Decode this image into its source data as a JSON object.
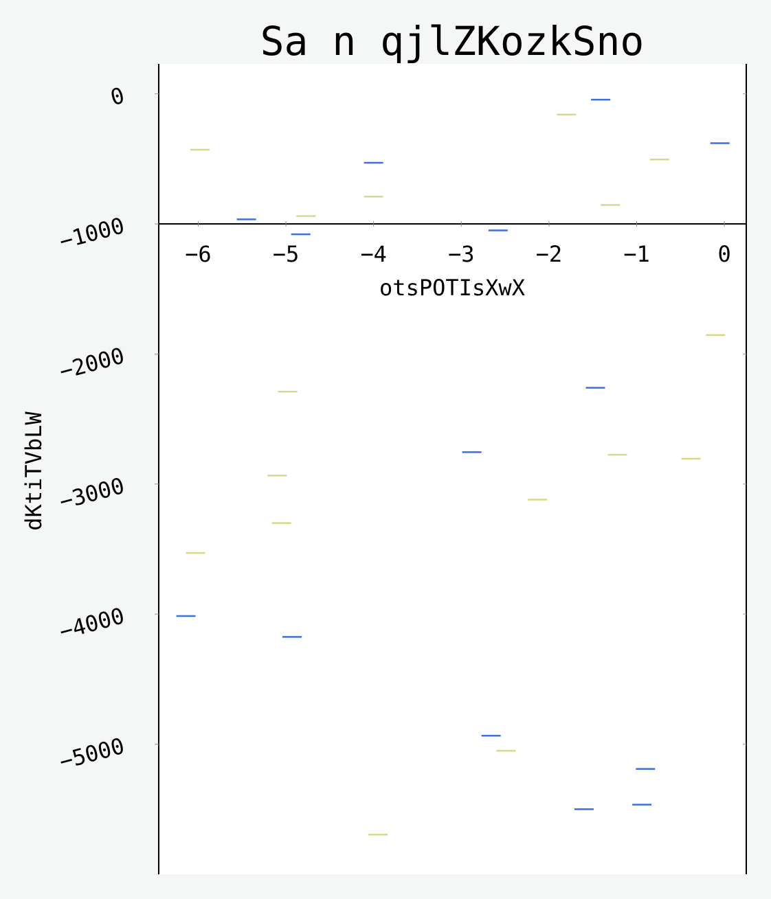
{
  "chart_data": {
    "type": "scatter",
    "title": "Sa n qjlZKozkSno",
    "xlabel": "otsPOTIsXwX",
    "ylabel": "dKtiTVbLW",
    "xlim": [
      -6.45,
      0.25
    ],
    "ylim": [
      -6000,
      230
    ],
    "xticks": [
      -6,
      -5,
      -4,
      -3,
      -2,
      -1,
      0
    ],
    "xtick_labels": [
      "−6",
      "−5",
      "−4",
      "−3",
      "−2",
      "−1",
      "0"
    ],
    "yticks": [
      0,
      -1000,
      -2000,
      -3000,
      -4000,
      -5000
    ],
    "ytick_labels": [
      "0",
      "−1000",
      "−2000",
      "−3000",
      "−4000",
      "−5000"
    ],
    "x_axis_at_y": -1000,
    "marker": "hline",
    "grid": false,
    "series": [
      {
        "color": "#3c6fe0",
        "points": [
          {
            "x": -1.41,
            "y": -45
          },
          {
            "x": -0.05,
            "y": -380
          },
          {
            "x": -4.0,
            "y": -530
          },
          {
            "x": -5.45,
            "y": -965
          },
          {
            "x": -4.83,
            "y": -1080
          },
          {
            "x": -2.58,
            "y": -1050
          },
          {
            "x": -1.47,
            "y": -2260
          },
          {
            "x": -2.88,
            "y": -2755
          },
          {
            "x": -6.14,
            "y": -4015
          },
          {
            "x": -4.93,
            "y": -4175
          },
          {
            "x": -2.66,
            "y": -4935
          },
          {
            "x": -0.9,
            "y": -5190
          },
          {
            "x": -0.94,
            "y": -5465
          },
          {
            "x": -1.6,
            "y": -5500
          }
        ]
      },
      {
        "color": "#d6d88a",
        "points": [
          {
            "x": -1.8,
            "y": -160
          },
          {
            "x": -0.74,
            "y": -505
          },
          {
            "x": -5.98,
            "y": -430
          },
          {
            "x": -4.0,
            "y": -790
          },
          {
            "x": -4.77,
            "y": -940
          },
          {
            "x": -1.3,
            "y": -855
          },
          {
            "x": -0.1,
            "y": -1855
          },
          {
            "x": -4.98,
            "y": -2290
          },
          {
            "x": -5.1,
            "y": -2935
          },
          {
            "x": -1.22,
            "y": -2775
          },
          {
            "x": -0.38,
            "y": -2805
          },
          {
            "x": -2.13,
            "y": -3120
          },
          {
            "x": -5.05,
            "y": -3300
          },
          {
            "x": -6.03,
            "y": -3530
          },
          {
            "x": -2.49,
            "y": -5050
          },
          {
            "x": -3.95,
            "y": -5695
          }
        ]
      }
    ]
  }
}
